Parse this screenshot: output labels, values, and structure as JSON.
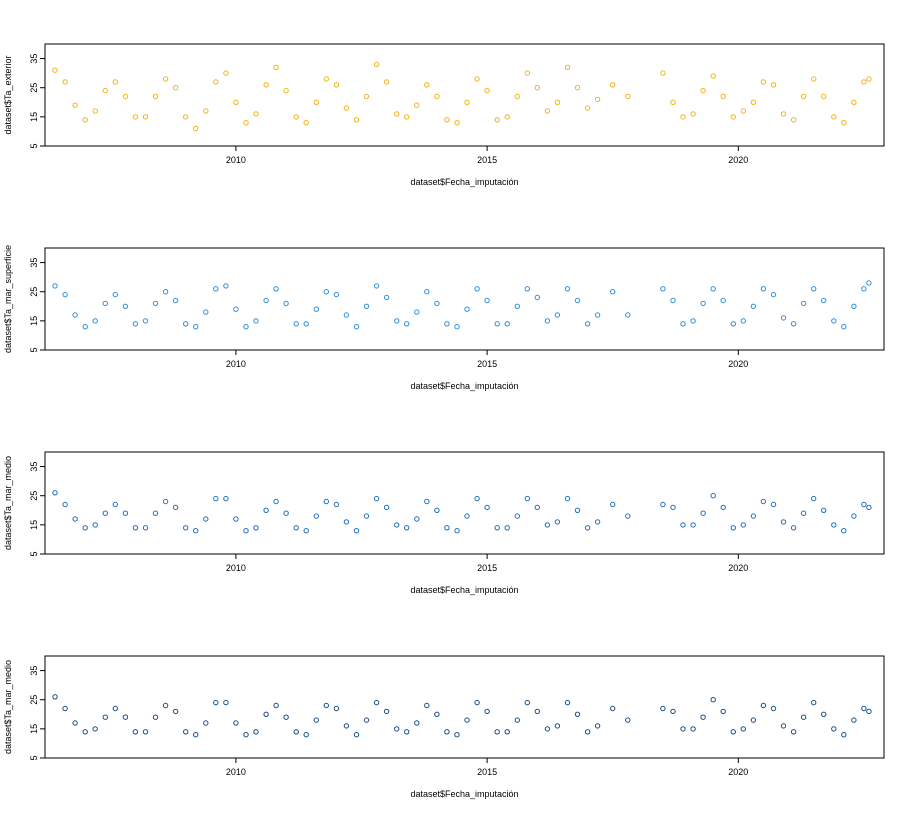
{
  "chart_data": [
    {
      "type": "scatter",
      "xlabel": "dataset$Fecha_imputación",
      "ylabel": "dataset$Ta_exterior",
      "ylim": [
        5,
        40
      ],
      "xlim": [
        2006.2,
        2022.9
      ],
      "x_ticks": [
        2010,
        2015,
        2020
      ],
      "y_ticks": [
        5,
        15,
        25,
        35
      ],
      "point_color": "#f2b31b",
      "marker": "open-circle",
      "grid": false,
      "series": [
        {
          "x": [
            2006.4,
            2006.6,
            2006.8,
            2007.0,
            2007.2,
            2007.4,
            2007.6,
            2007.8,
            2008.0,
            2008.2,
            2008.4,
            2008.6,
            2008.8,
            2009.0,
            2009.2,
            2009.4,
            2009.6,
            2009.8,
            2010.0,
            2010.2,
            2010.4,
            2010.6,
            2010.8,
            2011.0,
            2011.2,
            2011.4,
            2011.6,
            2011.8,
            2012.0,
            2012.2,
            2012.4,
            2012.6,
            2012.8,
            2013.0,
            2013.2,
            2013.4,
            2013.6,
            2013.8,
            2014.0,
            2014.2,
            2014.4,
            2014.6,
            2014.8,
            2015.0,
            2015.2,
            2015.4,
            2015.6,
            2015.8,
            2016.0,
            2016.2,
            2016.4,
            2016.6,
            2016.8,
            2017.0,
            2017.2,
            2017.5,
            2017.8,
            2018.5,
            2018.7,
            2018.9,
            2019.1,
            2019.3,
            2019.5,
            2019.7,
            2019.9,
            2020.1,
            2020.3,
            2020.5,
            2020.7,
            2020.9,
            2021.1,
            2021.3,
            2021.5,
            2021.7,
            2021.9,
            2022.1,
            2022.3,
            2022.5,
            2022.6
          ],
          "y": [
            31,
            27,
            19,
            14,
            17,
            24,
            27,
            22,
            15,
            15,
            22,
            28,
            25,
            15,
            11,
            17,
            27,
            30,
            20,
            13,
            16,
            26,
            32,
            24,
            15,
            13,
            20,
            28,
            26,
            18,
            14,
            22,
            33,
            27,
            16,
            15,
            19,
            26,
            22,
            14,
            13,
            20,
            28,
            24,
            14,
            15,
            22,
            30,
            25,
            17,
            20,
            32,
            25,
            18,
            21,
            26,
            22,
            30,
            20,
            15,
            16,
            24,
            29,
            22,
            15,
            17,
            20,
            27,
            26,
            16,
            14,
            22,
            28,
            22,
            15,
            13,
            20,
            27,
            28
          ]
        }
      ]
    },
    {
      "type": "scatter",
      "xlabel": "dataset$Fecha_imputación",
      "ylabel": "dataset$Ta_mar_superficie",
      "ylim": [
        5,
        40
      ],
      "xlim": [
        2006.2,
        2022.9
      ],
      "x_ticks": [
        2010,
        2015,
        2020
      ],
      "y_ticks": [
        5,
        15,
        25,
        35
      ],
      "point_color": "#2f8fe0",
      "marker": "open-circle",
      "grid": false,
      "series": [
        {
          "x": [
            2006.4,
            2006.6,
            2006.8,
            2007.0,
            2007.2,
            2007.4,
            2007.6,
            2007.8,
            2008.0,
            2008.2,
            2008.4,
            2008.6,
            2008.8,
            2009.0,
            2009.2,
            2009.4,
            2009.6,
            2009.8,
            2010.0,
            2010.2,
            2010.4,
            2010.6,
            2010.8,
            2011.0,
            2011.2,
            2011.4,
            2011.6,
            2011.8,
            2012.0,
            2012.2,
            2012.4,
            2012.6,
            2012.8,
            2013.0,
            2013.2,
            2013.4,
            2013.6,
            2013.8,
            2014.0,
            2014.2,
            2014.4,
            2014.6,
            2014.8,
            2015.0,
            2015.2,
            2015.4,
            2015.6,
            2015.8,
            2016.0,
            2016.2,
            2016.4,
            2016.6,
            2016.8,
            2017.0,
            2017.2,
            2017.5,
            2017.8,
            2018.5,
            2018.7,
            2018.9,
            2019.1,
            2019.3,
            2019.5,
            2019.7,
            2019.9,
            2020.1,
            2020.3,
            2020.5,
            2020.7,
            2020.9,
            2021.1,
            2021.3,
            2021.5,
            2021.7,
            2021.9,
            2022.1,
            2022.3,
            2022.5,
            2022.6
          ],
          "y": [
            27,
            24,
            17,
            13,
            15,
            21,
            24,
            20,
            14,
            15,
            21,
            25,
            22,
            14,
            13,
            18,
            26,
            27,
            19,
            13,
            15,
            22,
            26,
            21,
            14,
            14,
            19,
            25,
            24,
            17,
            13,
            20,
            27,
            23,
            15,
            14,
            18,
            25,
            21,
            14,
            13,
            19,
            26,
            22,
            14,
            14,
            20,
            26,
            23,
            15,
            17,
            26,
            22,
            14,
            17,
            25,
            17,
            26,
            22,
            14,
            15,
            21,
            26,
            22,
            14,
            15,
            20,
            26,
            24,
            16,
            14,
            21,
            26,
            22,
            15,
            13,
            20,
            26,
            28
          ]
        }
      ]
    },
    {
      "type": "scatter",
      "xlabel": "dataset$Fecha_imputación",
      "ylabel": "dataset$Ta_mar_medio",
      "ylim": [
        5,
        40
      ],
      "xlim": [
        2006.2,
        2022.9
      ],
      "x_ticks": [
        2010,
        2015,
        2020
      ],
      "y_ticks": [
        5,
        15,
        25,
        35
      ],
      "point_color": "#1f6fbf",
      "marker": "open-circle",
      "grid": false,
      "series": [
        {
          "x": [
            2006.4,
            2006.6,
            2006.8,
            2007.0,
            2007.2,
            2007.4,
            2007.6,
            2007.8,
            2008.0,
            2008.2,
            2008.4,
            2008.6,
            2008.8,
            2009.0,
            2009.2,
            2009.4,
            2009.6,
            2009.8,
            2010.0,
            2010.2,
            2010.4,
            2010.6,
            2010.8,
            2011.0,
            2011.2,
            2011.4,
            2011.6,
            2011.8,
            2012.0,
            2012.2,
            2012.4,
            2012.6,
            2012.8,
            2013.0,
            2013.2,
            2013.4,
            2013.6,
            2013.8,
            2014.0,
            2014.2,
            2014.4,
            2014.6,
            2014.8,
            2015.0,
            2015.2,
            2015.4,
            2015.6,
            2015.8,
            2016.0,
            2016.2,
            2016.4,
            2016.6,
            2016.8,
            2017.0,
            2017.2,
            2017.5,
            2017.8,
            2018.5,
            2018.7,
            2018.9,
            2019.1,
            2019.3,
            2019.5,
            2019.7,
            2019.9,
            2020.1,
            2020.3,
            2020.5,
            2020.7,
            2020.9,
            2021.1,
            2021.3,
            2021.5,
            2021.7,
            2021.9,
            2022.1,
            2022.3,
            2022.5,
            2022.6
          ],
          "y": [
            26,
            22,
            17,
            14,
            15,
            19,
            22,
            19,
            14,
            14,
            19,
            23,
            21,
            14,
            13,
            17,
            24,
            24,
            17,
            13,
            14,
            20,
            23,
            19,
            14,
            13,
            18,
            23,
            22,
            16,
            13,
            18,
            24,
            21,
            15,
            14,
            17,
            23,
            20,
            14,
            13,
            18,
            24,
            21,
            14,
            14,
            18,
            24,
            21,
            15,
            16,
            24,
            20,
            14,
            16,
            22,
            18,
            22,
            21,
            15,
            15,
            19,
            25,
            21,
            14,
            15,
            18,
            23,
            22,
            16,
            14,
            19,
            24,
            20,
            15,
            13,
            18,
            22,
            21
          ]
        }
      ]
    },
    {
      "type": "scatter",
      "xlabel": "dataset$Fecha_imputación",
      "ylabel": "dataset$Ta_mar_medio",
      "ylim": [
        5,
        40
      ],
      "xlim": [
        2006.2,
        2022.9
      ],
      "x_ticks": [
        2010,
        2015,
        2020
      ],
      "y_ticks": [
        5,
        15,
        25,
        35
      ],
      "point_color": "#174f85",
      "marker": "open-circle",
      "grid": false,
      "series": [
        {
          "x": [
            2006.4,
            2006.6,
            2006.8,
            2007.0,
            2007.2,
            2007.4,
            2007.6,
            2007.8,
            2008.0,
            2008.2,
            2008.4,
            2008.6,
            2008.8,
            2009.0,
            2009.2,
            2009.4,
            2009.6,
            2009.8,
            2010.0,
            2010.2,
            2010.4,
            2010.6,
            2010.8,
            2011.0,
            2011.2,
            2011.4,
            2011.6,
            2011.8,
            2012.0,
            2012.2,
            2012.4,
            2012.6,
            2012.8,
            2013.0,
            2013.2,
            2013.4,
            2013.6,
            2013.8,
            2014.0,
            2014.2,
            2014.4,
            2014.6,
            2014.8,
            2015.0,
            2015.2,
            2015.4,
            2015.6,
            2015.8,
            2016.0,
            2016.2,
            2016.4,
            2016.6,
            2016.8,
            2017.0,
            2017.2,
            2017.5,
            2017.8,
            2018.5,
            2018.7,
            2018.9,
            2019.1,
            2019.3,
            2019.5,
            2019.7,
            2019.9,
            2020.1,
            2020.3,
            2020.5,
            2020.7,
            2020.9,
            2021.1,
            2021.3,
            2021.5,
            2021.7,
            2021.9,
            2022.1,
            2022.3,
            2022.5,
            2022.6
          ],
          "y": [
            26,
            22,
            17,
            14,
            15,
            19,
            22,
            19,
            14,
            14,
            19,
            23,
            21,
            14,
            13,
            17,
            24,
            24,
            17,
            13,
            14,
            20,
            23,
            19,
            14,
            13,
            18,
            23,
            22,
            16,
            13,
            18,
            24,
            21,
            15,
            14,
            17,
            23,
            20,
            14,
            13,
            18,
            24,
            21,
            14,
            14,
            18,
            24,
            21,
            15,
            16,
            24,
            20,
            14,
            16,
            22,
            18,
            22,
            21,
            15,
            15,
            19,
            25,
            21,
            14,
            15,
            18,
            23,
            22,
            16,
            14,
            19,
            24,
            20,
            15,
            13,
            18,
            22,
            21
          ]
        }
      ]
    }
  ]
}
